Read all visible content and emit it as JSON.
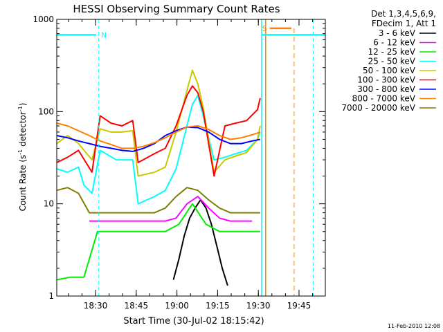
{
  "chart_data": {
    "type": "line",
    "title": "HESSI Observing Summary Count Rates",
    "xlabel": "Start Time (30-Jul-02 18:15:42)",
    "ylabel_main": "Count Rate (s",
    "ylabel_sup1": "-1",
    "ylabel_mid": " detector",
    "ylabel_sup2": "-1",
    "ylabel_end": ")",
    "y_scale": "log",
    "ylim": [
      1,
      1000
    ],
    "xlim_minutes_after_start": [
      0,
      99
    ],
    "x_ticks": [
      {
        "label": "18:30",
        "minute": 14.3
      },
      {
        "label": "18:45",
        "minute": 29.3
      },
      {
        "label": "19:00",
        "minute": 44.3
      },
      {
        "label": "19:15",
        "minute": 59.3
      },
      {
        "label": "19:30",
        "minute": 74.3
      },
      {
        "label": "19:45",
        "minute": 89.3
      }
    ],
    "y_ticks": [
      {
        "label": "1",
        "value": 1
      },
      {
        "label": "10",
        "value": 10
      },
      {
        "label": "100",
        "value": 100
      },
      {
        "label": "1000",
        "value": 1000
      }
    ],
    "legend_header": [
      "Det 1,3,4,5,6,9,",
      "FDecim 1, Att 1"
    ],
    "legend_position": "right, outside plot",
    "series": [
      {
        "name": "3 - 6 keV",
        "color": "#000000",
        "x": [
          43,
          45,
          47,
          49,
          51,
          53,
          55,
          57,
          59,
          61,
          63
        ],
        "y": [
          1.5,
          2.5,
          4.5,
          7,
          9,
          11,
          9,
          6,
          3.5,
          2,
          1.3
        ]
      },
      {
        "name": "6 - 12 keV",
        "color": "#ff00ff",
        "x": [
          12,
          16,
          20,
          24,
          28,
          32,
          36,
          40,
          44,
          48,
          52,
          56,
          60,
          64,
          68,
          72
        ],
        "y": [
          6.5,
          6.5,
          6.5,
          6.5,
          6.5,
          6.5,
          6.5,
          6.5,
          7,
          10,
          12,
          9,
          7,
          6.5,
          6.5,
          6.5
        ]
      },
      {
        "name": "12 - 25 keV",
        "color": "#00ee00",
        "x": [
          0,
          5,
          10,
          15,
          20,
          25,
          30,
          35,
          40,
          45,
          50,
          55,
          60,
          65,
          70,
          75
        ],
        "y": [
          1.5,
          1.6,
          1.6,
          5,
          5,
          5,
          5,
          5,
          5,
          6,
          10,
          6,
          5,
          5,
          5,
          5
        ]
      },
      {
        "name": "25 - 50 keV",
        "color": "#00ffff",
        "x": [
          0,
          4,
          8,
          10,
          13,
          16,
          22,
          28,
          30,
          36,
          40,
          44,
          48,
          50,
          52,
          54,
          58,
          62,
          66,
          70,
          74,
          75
        ],
        "y": [
          24,
          22,
          25,
          16,
          13,
          38,
          30,
          30,
          10,
          12,
          14,
          24,
          70,
          120,
          150,
          90,
          30,
          32,
          35,
          38,
          50,
          60
        ]
      },
      {
        "name": "50 - 100 keV",
        "color": "#c8c800",
        "x": [
          0,
          4,
          8,
          13,
          16,
          20,
          24,
          28,
          30,
          36,
          40,
          44,
          48,
          50,
          52,
          54,
          58,
          62,
          66,
          70,
          74,
          75
        ],
        "y": [
          45,
          55,
          45,
          30,
          65,
          60,
          60,
          62,
          20,
          22,
          25,
          60,
          170,
          280,
          200,
          110,
          22,
          30,
          33,
          36,
          50,
          70
        ]
      },
      {
        "name": "100 - 300 keV",
        "color": "#ff0000",
        "x": [
          0,
          4,
          8,
          13,
          16,
          20,
          24,
          28,
          30,
          36,
          40,
          44,
          48,
          50,
          52,
          54,
          58,
          62,
          66,
          70,
          74,
          75
        ],
        "y": [
          28,
          32,
          38,
          22,
          90,
          75,
          70,
          80,
          28,
          35,
          40,
          70,
          150,
          190,
          160,
          100,
          20,
          70,
          75,
          80,
          105,
          140
        ]
      },
      {
        "name": "300 - 800 keV",
        "color": "#0000ff",
        "x": [
          0,
          4,
          8,
          12,
          16,
          20,
          24,
          28,
          32,
          36,
          40,
          44,
          48,
          52,
          56,
          60,
          64,
          68,
          72,
          75
        ],
        "y": [
          55,
          52,
          48,
          45,
          42,
          40,
          38,
          37,
          40,
          45,
          55,
          62,
          68,
          67,
          60,
          50,
          45,
          45,
          48,
          50
        ]
      },
      {
        "name": "800 - 7000 keV",
        "color": "#ff7f00",
        "x": [
          0,
          4,
          8,
          12,
          16,
          20,
          24,
          28,
          32,
          36,
          40,
          44,
          48,
          52,
          56,
          60,
          64,
          68,
          72,
          75
        ],
        "y": [
          75,
          70,
          62,
          55,
          48,
          44,
          40,
          40,
          42,
          46,
          52,
          60,
          68,
          70,
          64,
          55,
          50,
          52,
          56,
          60
        ]
      },
      {
        "name": "7000 - 20000 keV",
        "color": "#7f7f00",
        "x": [
          0,
          4,
          8,
          12,
          16,
          20,
          24,
          28,
          32,
          36,
          40,
          44,
          48,
          52,
          56,
          60,
          64,
          68,
          72,
          75
        ],
        "y": [
          14,
          15,
          13,
          8,
          8,
          8,
          8,
          8,
          8,
          8,
          9,
          12,
          15,
          14,
          11,
          9,
          8,
          8,
          8,
          8
        ]
      }
    ],
    "annotations": [
      {
        "text": "N",
        "color": "#00ffff"
      },
      {
        "text": "S",
        "color": "#ff7f00"
      }
    ],
    "footer_date": "11-Feb-2010 12:08"
  }
}
